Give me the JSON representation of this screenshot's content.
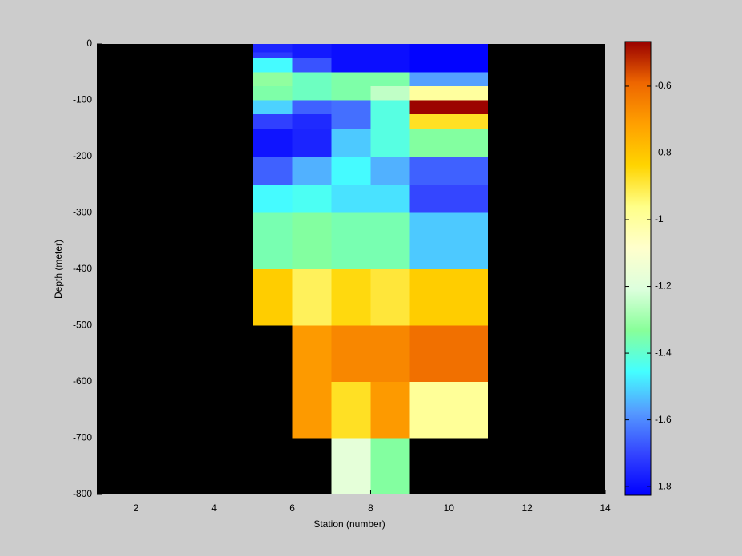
{
  "chart_data": {
    "type": "heatmap",
    "xlabel": "Station (number)",
    "ylabel": "Depth (meter)",
    "xlim": [
      1,
      14
    ],
    "xticks": [
      2,
      4,
      6,
      8,
      10,
      12,
      14
    ],
    "ylim": [
      -800,
      0
    ],
    "yticks": [
      0,
      -100,
      -200,
      -300,
      -400,
      -500,
      -600,
      -700,
      -800
    ],
    "background": "#000000",
    "colormap": [
      "#0000ff",
      "#3344ff",
      "#5599ff",
      "#44ffff",
      "#88ff99",
      "#ddffdd",
      "#ffffcc",
      "#ffff88",
      "#ffd400",
      "#ffa000",
      "#ee6600",
      "#990000"
    ],
    "clim": [
      -1.826,
      -0.466
    ],
    "cticks": [
      -0.6,
      -0.8,
      -1,
      -1.2,
      -1.4,
      -1.6,
      -1.8
    ],
    "cells": [
      {
        "x": [
          5,
          6
        ],
        "y": [
          0,
          -15
        ],
        "value": -1.76
      },
      {
        "x": [
          5,
          6
        ],
        "y": [
          -15,
          -25
        ],
        "value": -1.72
      },
      {
        "x": [
          5,
          6
        ],
        "y": [
          -25,
          -50
        ],
        "value": -1.46
      },
      {
        "x": [
          5,
          6
        ],
        "y": [
          -50,
          -75
        ],
        "value": -1.32
      },
      {
        "x": [
          5,
          6
        ],
        "y": [
          -75,
          -100
        ],
        "value": -1.35
      },
      {
        "x": [
          5,
          6
        ],
        "y": [
          -100,
          -125
        ],
        "value": -1.51
      },
      {
        "x": [
          5,
          6
        ],
        "y": [
          -125,
          -150
        ],
        "value": -1.71
      },
      {
        "x": [
          5,
          6
        ],
        "y": [
          -150,
          -200
        ],
        "value": -1.79
      },
      {
        "x": [
          5,
          6
        ],
        "y": [
          -200,
          -250
        ],
        "value": -1.66
      },
      {
        "x": [
          5,
          6
        ],
        "y": [
          -250,
          -300
        ],
        "value": -1.46
      },
      {
        "x": [
          5,
          6
        ],
        "y": [
          -300,
          -400
        ],
        "value": -1.36
      },
      {
        "x": [
          5,
          6
        ],
        "y": [
          -400,
          -500
        ],
        "value": -0.82
      },
      {
        "x": [
          6,
          7
        ],
        "y": [
          0,
          -25
        ],
        "value": -1.78
      },
      {
        "x": [
          6,
          7
        ],
        "y": [
          -25,
          -50
        ],
        "value": -1.68
      },
      {
        "x": [
          6,
          7
        ],
        "y": [
          -50,
          -100
        ],
        "value": -1.38
      },
      {
        "x": [
          6,
          7
        ],
        "y": [
          -100,
          -125
        ],
        "value": -1.66
      },
      {
        "x": [
          6,
          7
        ],
        "y": [
          -125,
          -150
        ],
        "value": -1.75
      },
      {
        "x": [
          6,
          7
        ],
        "y": [
          -150,
          -200
        ],
        "value": -1.76
      },
      {
        "x": [
          6,
          7
        ],
        "y": [
          -200,
          -250
        ],
        "value": -1.55
      },
      {
        "x": [
          6,
          7
        ],
        "y": [
          -250,
          -300
        ],
        "value": -1.44
      },
      {
        "x": [
          6,
          7
        ],
        "y": [
          -300,
          -400
        ],
        "value": -1.34
      },
      {
        "x": [
          6,
          7
        ],
        "y": [
          -400,
          -500
        ],
        "value": -0.92
      },
      {
        "x": [
          6,
          7
        ],
        "y": [
          -500,
          -600
        ],
        "value": -0.7
      },
      {
        "x": [
          6,
          7
        ],
        "y": [
          -600,
          -700
        ],
        "value": -0.7
      },
      {
        "x": [
          7,
          8
        ],
        "y": [
          0,
          -50
        ],
        "value": -1.8
      },
      {
        "x": [
          7,
          8
        ],
        "y": [
          -50,
          -100
        ],
        "value": -1.35
      },
      {
        "x": [
          7,
          8
        ],
        "y": [
          -100,
          -150
        ],
        "value": -1.64
      },
      {
        "x": [
          7,
          8
        ],
        "y": [
          -150,
          -200
        ],
        "value": -1.52
      },
      {
        "x": [
          7,
          8
        ],
        "y": [
          -200,
          -250
        ],
        "value": -1.46
      },
      {
        "x": [
          7,
          8
        ],
        "y": [
          -250,
          -300
        ],
        "value": -1.49
      },
      {
        "x": [
          7,
          8
        ],
        "y": [
          -300,
          -400
        ],
        "value": -1.36
      },
      {
        "x": [
          7,
          8
        ],
        "y": [
          -400,
          -500
        ],
        "value": -0.85
      },
      {
        "x": [
          7,
          8
        ],
        "y": [
          -500,
          -600
        ],
        "value": -0.66
      },
      {
        "x": [
          7,
          8
        ],
        "y": [
          -600,
          -700
        ],
        "value": -0.87
      },
      {
        "x": [
          7,
          8
        ],
        "y": [
          -700,
          -800
        ],
        "value": -1.18
      },
      {
        "x": [
          8,
          9
        ],
        "y": [
          0,
          -50
        ],
        "value": -1.8
      },
      {
        "x": [
          8,
          9
        ],
        "y": [
          -50,
          -75
        ],
        "value": -1.35
      },
      {
        "x": [
          8,
          9
        ],
        "y": [
          -75,
          -100
        ],
        "value": -1.25
      },
      {
        "x": [
          8,
          9
        ],
        "y": [
          -100,
          -200
        ],
        "value": -1.42
      },
      {
        "x": [
          8,
          9
        ],
        "y": [
          -200,
          -250
        ],
        "value": -1.55
      },
      {
        "x": [
          8,
          9
        ],
        "y": [
          -250,
          -300
        ],
        "value": -1.49
      },
      {
        "x": [
          8,
          9
        ],
        "y": [
          -300,
          -400
        ],
        "value": -1.36
      },
      {
        "x": [
          8,
          9
        ],
        "y": [
          -400,
          -500
        ],
        "value": -0.89
      },
      {
        "x": [
          8,
          9
        ],
        "y": [
          -500,
          -600
        ],
        "value": -0.66
      },
      {
        "x": [
          8,
          9
        ],
        "y": [
          -600,
          -700
        ],
        "value": -0.7
      },
      {
        "x": [
          8,
          9
        ],
        "y": [
          -700,
          -800
        ],
        "value": -1.34
      },
      {
        "x": [
          9,
          11
        ],
        "y": [
          0,
          -50
        ],
        "value": -1.82
      },
      {
        "x": [
          9,
          11
        ],
        "y": [
          -50,
          -75
        ],
        "value": -1.57
      },
      {
        "x": [
          9,
          11
        ],
        "y": [
          -75,
          -100
        ],
        "value": -1
      },
      {
        "x": [
          9,
          11
        ],
        "y": [
          -100,
          -125
        ],
        "value": -0.47
      },
      {
        "x": [
          9,
          11
        ],
        "y": [
          -125,
          -150
        ],
        "value": -0.87
      },
      {
        "x": [
          9,
          11
        ],
        "y": [
          -150,
          -200
        ],
        "value": -1.34
      },
      {
        "x": [
          9,
          11
        ],
        "y": [
          -200,
          -250
        ],
        "value": -1.66
      },
      {
        "x": [
          9,
          11
        ],
        "y": [
          -250,
          -300
        ],
        "value": -1.7
      },
      {
        "x": [
          9,
          11
        ],
        "y": [
          -300,
          -400
        ],
        "value": -1.52
      },
      {
        "x": [
          9,
          11
        ],
        "y": [
          -400,
          -500
        ],
        "value": -0.82
      },
      {
        "x": [
          9,
          11
        ],
        "y": [
          -500,
          -600
        ],
        "value": -0.61
      },
      {
        "x": [
          9,
          11
        ],
        "y": [
          -600,
          -700
        ],
        "value": -0.99
      }
    ]
  }
}
